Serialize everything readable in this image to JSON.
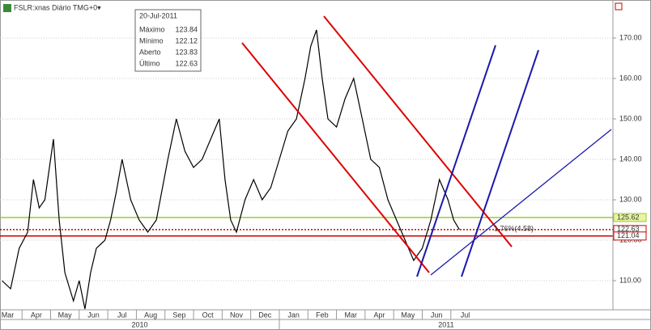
{
  "chart_data": {
    "type": "line",
    "title": "FSLR:xnas Diário TMG+0▾",
    "info_box": {
      "date": "20-Jul-2011",
      "rows": [
        [
          "Máximo",
          123.84
        ],
        [
          "Mínimo",
          122.12
        ],
        [
          "Aberto",
          123.83
        ],
        [
          "Último",
          122.63
        ]
      ]
    },
    "x": [
      0.3,
      0.6,
      0.9,
      1.2,
      1.4,
      1.6,
      1.8,
      2.1,
      2.3,
      2.5,
      2.8,
      3.0,
      3.2,
      3.4,
      3.6,
      3.9,
      4.1,
      4.3,
      4.5,
      4.8,
      5.1,
      5.4,
      5.7,
      6.1,
      6.4,
      6.7,
      7.0,
      7.3,
      7.6,
      7.9,
      8.1,
      8.3,
      8.5,
      8.8,
      9.1,
      9.4,
      9.7,
      10.0,
      10.3,
      10.6,
      10.9,
      11.1,
      11.3,
      11.5,
      11.7,
      12.0,
      12.3,
      12.6,
      12.9,
      13.2,
      13.5,
      13.8,
      14.1,
      14.4,
      14.7,
      15.0,
      15.3,
      15.6,
      15.9,
      16.1,
      16.3
    ],
    "series": [
      {
        "name": "FSLR",
        "color": "#000000",
        "values": [
          110,
          108,
          118,
          122,
          135,
          128,
          130,
          145,
          125,
          112,
          105,
          110,
          103,
          112,
          118,
          120,
          125,
          132,
          140,
          130,
          125,
          122,
          125,
          140,
          150,
          142,
          138,
          140,
          145,
          150,
          135,
          125,
          122,
          130,
          135,
          130,
          133,
          140,
          147,
          150,
          160,
          168,
          172,
          160,
          150,
          148,
          155,
          160,
          150,
          140,
          138,
          130,
          125,
          120,
          115,
          118,
          125,
          135,
          130,
          125,
          122.63
        ]
      }
    ],
    "xlim": [
      0.23,
      21.67
    ],
    "xticks": [
      {
        "value": 0,
        "label": "Mar"
      },
      {
        "value": 1,
        "label": "Apr"
      },
      {
        "value": 2,
        "label": "May"
      },
      {
        "value": 3,
        "label": "Jun"
      },
      {
        "value": 4,
        "label": "Jul"
      },
      {
        "value": 5,
        "label": "Aug"
      },
      {
        "value": 6,
        "label": "Sep"
      },
      {
        "value": 7,
        "label": "Oct"
      },
      {
        "value": 8,
        "label": "Nov"
      },
      {
        "value": 9,
        "label": "Dec"
      },
      {
        "value": 10,
        "label": "Jan"
      },
      {
        "value": 11,
        "label": "Feb"
      },
      {
        "value": 12,
        "label": "Mar"
      },
      {
        "value": 13,
        "label": "Apr"
      },
      {
        "value": 14,
        "label": "May"
      },
      {
        "value": 15,
        "label": "Jun"
      },
      {
        "value": 16,
        "label": "Jul"
      }
    ],
    "years": [
      "2010",
      "2011"
    ],
    "ylim": [
      102.8,
      177.8
    ],
    "yticks": [
      {
        "value": 110,
        "label": "110.00"
      },
      {
        "value": 120,
        "label": "120.00"
      },
      {
        "value": 130,
        "label": "130.00"
      },
      {
        "value": 140,
        "label": "140.00"
      },
      {
        "value": 150,
        "label": "150.00"
      },
      {
        "value": 160,
        "label": "160.00"
      },
      {
        "value": 170,
        "label": "170.00"
      }
    ],
    "levels": [
      {
        "value": 125.62,
        "color": "#9acd32",
        "label_bg": "#e8f5a0"
      },
      {
        "value": 122.63,
        "color": "#cc0000",
        "label_bg": "#ffffff"
      },
      {
        "value": 121.04,
        "color": "#cc0000",
        "label_bg": "#ffffff"
      }
    ],
    "annotation": "1.76%(4.58)",
    "grid": true
  }
}
